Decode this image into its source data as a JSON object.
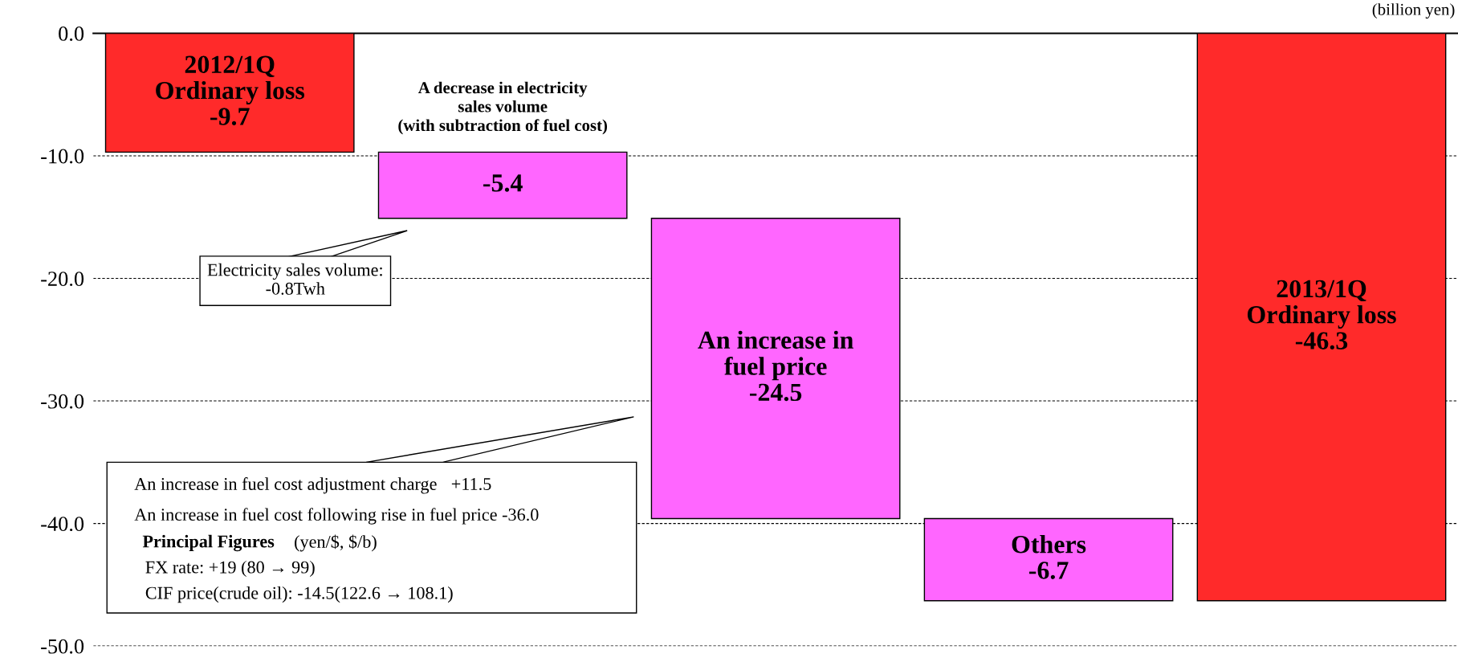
{
  "chart_data": {
    "type": "bar",
    "categories": [
      null,
      null,
      null,
      null,
      null
    ],
    "values": [
      -9.7,
      -5.4,
      -24.5,
      -6.7,
      -46.3
    ],
    "base": [
      0,
      -9.7,
      -15.1,
      -39.6,
      0
    ],
    "colors": [
      "#ff2a2a",
      "#ff66ff",
      "#ff66ff",
      "#ff66ff",
      "#ff2a2a"
    ],
    "value_labels": [
      "2012/1Q\nOrdinary loss\n-9.7",
      "-5.4",
      "An increase in\nfuel price\n-24.5",
      "Others\n-6.7",
      "2013/1Q\nOrdinary loss\n-46.3"
    ],
    "ylim": [
      -50,
      0
    ],
    "yticks": [
      {
        "value": 0,
        "label": "0.0"
      },
      {
        "value": -10,
        "label": "-10.0"
      },
      {
        "value": -20,
        "label": "-20.0"
      },
      {
        "value": -30,
        "label": "-30.0"
      },
      {
        "value": -40,
        "label": "-40.0"
      },
      {
        "value": -50,
        "label": "-50.0"
      }
    ],
    "grid": "y",
    "tick_labels": "y",
    "annotations": [
      "(billion yen)",
      "A decrease in electricity\nsales volume\n(with subtraction of fuel cost)",
      "Electricity sales volume:\n-0.8Twh",
      "An increase in fuel cost adjustment charge　+11.5",
      "An increase in fuel cost following rise in fuel price -36.0",
      "Principal Figures",
      "(yen/$, $/b)",
      "FX rate: +19 (80 → 99)",
      "CIF price(crude oil): -14.5(122.6 → 108.1)"
    ]
  }
}
